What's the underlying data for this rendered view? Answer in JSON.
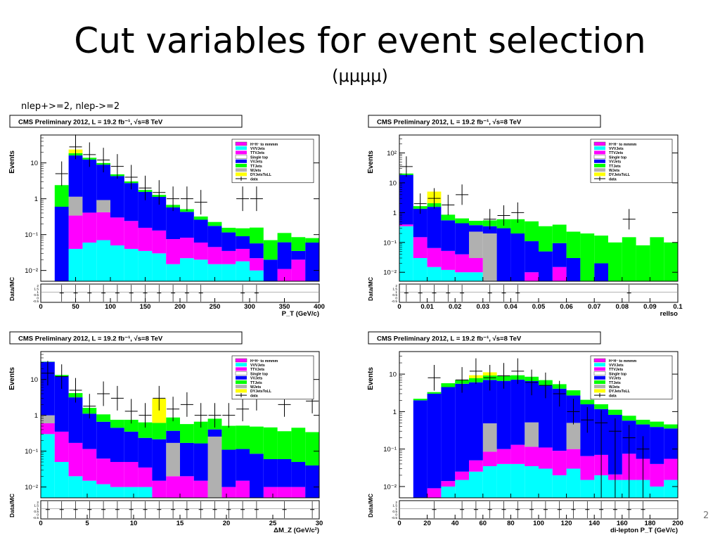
{
  "slide": {
    "title": "Cut variables for event selection",
    "subtitle": "(μμμμ)",
    "selection_note": "nlep+>=2, nlep->=2",
    "page_number": "2"
  },
  "colors": {
    "signal": "#ff00ff",
    "vvv": "#00ffff",
    "ttv": "#ff00ff",
    "single_top": "#ffffff",
    "vv": "#0000ff",
    "tt": "#00ff00",
    "w": "#b0b0b0",
    "dy": "#ffff00",
    "data": "#000000",
    "frame": "#000000"
  },
  "legend_entries": [
    "H⁺H⁻ to mmmm",
    "VVVJets",
    "TTVJets",
    "Single top",
    "VVJets",
    "TTJets",
    "WJets",
    "DYJetsToLL",
    "data"
  ],
  "chart_data": [
    {
      "type": "bar",
      "header": "CMS Preliminary 2012, L = 19.2 fb⁻¹, √s=8 TeV",
      "ylabel": "Events",
      "xlabel": "P_T (GeV/c)",
      "ratio_label": "Data/MC",
      "log_y": true,
      "ylim": [
        0.005,
        60
      ],
      "xlim": [
        0,
        400
      ],
      "x_ticks": [
        "0",
        "50",
        "100",
        "150",
        "200",
        "250",
        "300",
        "350",
        "400"
      ],
      "y_ticks": [
        {
          "v": 10,
          "label": "10"
        },
        {
          "v": 1,
          "label": "1"
        },
        {
          "v": 0.1,
          "label": "10⁻¹"
        },
        {
          "v": 0.01,
          "label": "10⁻²"
        }
      ],
      "ratio_ticks": [
        "2",
        "1.5",
        "1",
        "0.5",
        "0",
        "-0.5"
      ],
      "bin_edges": [
        20,
        40,
        60,
        80,
        100,
        120,
        140,
        160,
        180,
        200,
        220,
        240,
        260,
        280,
        300,
        320,
        340,
        360,
        380,
        400
      ],
      "stack": [
        {
          "name": "VVVJets",
          "color": "#00ffff",
          "values": [
            0,
            0.04,
            0.06,
            0.07,
            0.05,
            0.04,
            0.035,
            0.03,
            0.015,
            0.022,
            0.02,
            0.015,
            0.015,
            0.018,
            0.01,
            0,
            0,
            0,
            0
          ]
        },
        {
          "name": "TTVJets",
          "color": "#ff00ff",
          "values": [
            0,
            0.3,
            0.35,
            0.35,
            0.25,
            0.2,
            0.12,
            0.1,
            0.06,
            0.06,
            0.04,
            0.03,
            0.02,
            0.022,
            0.012,
            0,
            0.011,
            0.02,
            0
          ]
        },
        {
          "name": "WJets",
          "color": "#b0b0b0",
          "values": [
            0,
            0.8,
            0,
            0.5,
            0,
            0,
            0,
            0,
            0,
            0,
            0,
            0,
            0,
            0,
            0,
            0,
            0,
            0,
            0
          ]
        },
        {
          "name": "VVJets",
          "color": "#0000ff",
          "values": [
            0.6,
            15,
            12,
            8,
            4,
            2.5,
            1.4,
            1,
            0.5,
            0.35,
            0.2,
            0.13,
            0.08,
            0.05,
            0.035,
            0.02,
            0.05,
            0.015,
            0.06
          ]
        },
        {
          "name": "TTJets",
          "color": "#00ff00",
          "values": [
            1.8,
            2.5,
            1.5,
            1,
            0.5,
            0.3,
            0.2,
            0.15,
            0.1,
            0.08,
            0.06,
            0.05,
            0.04,
            0.06,
            0.1,
            0.05,
            0.05,
            0.05,
            0.02
          ]
        },
        {
          "name": "DYJetsToLL",
          "color": "#ffff00",
          "values": [
            0,
            5,
            0,
            0,
            0,
            0,
            0,
            0,
            0,
            0,
            0,
            0,
            0,
            0,
            0,
            0,
            0,
            0,
            0
          ]
        }
      ],
      "data": [
        {
          "x": 30,
          "y": 5
        },
        {
          "x": 50,
          "y": 28
        },
        {
          "x": 70,
          "y": 17
        },
        {
          "x": 90,
          "y": 12
        },
        {
          "x": 110,
          "y": 8
        },
        {
          "x": 130,
          "y": 4
        },
        {
          "x": 150,
          "y": 2
        },
        {
          "x": 170,
          "y": 1.5
        },
        {
          "x": 190,
          "y": 1
        },
        {
          "x": 210,
          "y": 1
        },
        {
          "x": 230,
          "y": 0.8
        },
        {
          "x": 290,
          "y": 1
        },
        {
          "x": 310,
          "y": 1
        }
      ]
    },
    {
      "type": "bar",
      "header": "CMS Preliminary 2012, L = 19.2 fb⁻¹, √s=8 TeV",
      "ylabel": "Events",
      "xlabel": "relIso",
      "ratio_label": "Data/MC",
      "log_y": true,
      "ylim": [
        0.005,
        400
      ],
      "xlim": [
        0,
        0.1
      ],
      "x_ticks": [
        "0",
        "0.01",
        "0.02",
        "0.03",
        "0.04",
        "0.05",
        "0.06",
        "0.07",
        "0.08",
        "0.09",
        "0.1"
      ],
      "y_ticks": [
        {
          "v": 100,
          "label": "10²"
        },
        {
          "v": 10,
          "label": "10"
        },
        {
          "v": 1,
          "label": "1"
        },
        {
          "v": 0.1,
          "label": "10⁻¹"
        },
        {
          "v": 0.01,
          "label": "10⁻²"
        }
      ],
      "ratio_ticks": [
        "2",
        "1.5",
        "1",
        "0.5",
        "0",
        "-0.5"
      ],
      "bin_edges": [
        0,
        0.005,
        0.01,
        0.015,
        0.02,
        0.025,
        0.03,
        0.035,
        0.04,
        0.045,
        0.05,
        0.055,
        0.06,
        0.065,
        0.07,
        0.075,
        0.08,
        0.085,
        0.09,
        0.095,
        0.1
      ],
      "stack": [
        {
          "name": "VVVJets",
          "color": "#00ffff",
          "values": [
            0.35,
            0.03,
            0.015,
            0.012,
            0.01,
            0.01,
            0,
            0,
            0,
            0,
            0,
            0,
            0,
            0,
            0,
            0,
            0,
            0,
            0,
            0
          ]
        },
        {
          "name": "TTVJets",
          "color": "#ff00ff",
          "values": [
            0.05,
            0.12,
            0.05,
            0.04,
            0.03,
            0.02,
            0,
            0,
            0,
            0.01,
            0,
            0.015,
            0,
            0,
            0,
            0,
            0,
            0,
            0,
            0
          ]
        },
        {
          "name": "WJets",
          "color": "#b0b0b0",
          "values": [
            0,
            0,
            0,
            0,
            0,
            0.2,
            0.2,
            0,
            0,
            0,
            0,
            0,
            0,
            0,
            0,
            0,
            0,
            0,
            0,
            0
          ]
        },
        {
          "name": "VVJets",
          "color": "#0000ff",
          "values": [
            18,
            1.2,
            1.5,
            0.5,
            0.4,
            0.15,
            0.15,
            0.3,
            0.2,
            0.1,
            0.05,
            0.08,
            0.03,
            0,
            0.02,
            0,
            0,
            0,
            0,
            0
          ]
        },
        {
          "name": "TTJets",
          "color": "#00ff00",
          "values": [
            2,
            0.3,
            0.5,
            0.3,
            0.2,
            0.15,
            0.2,
            0.3,
            0.4,
            0.4,
            0.3,
            0.3,
            0.2,
            0.2,
            0.15,
            0.1,
            0.15,
            0.08,
            0.15,
            0.1
          ]
        },
        {
          "name": "DYJetsToLL",
          "color": "#ffff00",
          "values": [
            0,
            0,
            3,
            0,
            0,
            0,
            0,
            0,
            0,
            0,
            0,
            0,
            0,
            0,
            0,
            0,
            0,
            0,
            0,
            0
          ]
        }
      ],
      "data": [
        {
          "x": 0.0025,
          "y": 35
        },
        {
          "x": 0.0075,
          "y": 2
        },
        {
          "x": 0.0125,
          "y": 3
        },
        {
          "x": 0.0175,
          "y": 1.8
        },
        {
          "x": 0.0225,
          "y": 4
        },
        {
          "x": 0.0325,
          "y": 0.6
        },
        {
          "x": 0.0375,
          "y": 0.8
        },
        {
          "x": 0.0425,
          "y": 1
        },
        {
          "x": 0.0825,
          "y": 0.6
        }
      ]
    },
    {
      "type": "bar",
      "header": "CMS Preliminary 2012, L = 19.2 fb⁻¹, √s=8 TeV",
      "ylabel": "Events",
      "xlabel": "ΔM_Z (GeV/c²)",
      "ratio_label": "Data/MC",
      "log_y": true,
      "ylim": [
        0.005,
        60
      ],
      "xlim": [
        0,
        30
      ],
      "x_ticks": [
        "0",
        "5",
        "10",
        "15",
        "20",
        "25",
        "30"
      ],
      "y_ticks": [
        {
          "v": 10,
          "label": "10"
        },
        {
          "v": 1,
          "label": "1"
        },
        {
          "v": 0.1,
          "label": "10⁻¹"
        },
        {
          "v": 0.01,
          "label": "10⁻²"
        }
      ],
      "ratio_ticks": [
        "2",
        "1.5",
        "1",
        "0.5",
        "0",
        "-0.5"
      ],
      "bin_edges": [
        0,
        1.5,
        3,
        4.5,
        6,
        7.5,
        9,
        10.5,
        12,
        13.5,
        15,
        16.5,
        18,
        19.5,
        21,
        22.5,
        24,
        25.5,
        27,
        28.5,
        30
      ],
      "stack": [
        {
          "name": "VVVJets",
          "color": "#00ffff",
          "values": [
            0.3,
            0.05,
            0.02,
            0.015,
            0.012,
            0.01,
            0.01,
            0.01,
            0,
            0,
            0,
            0,
            0,
            0,
            0,
            0,
            0,
            0,
            0,
            0
          ]
        },
        {
          "name": "TTVJets",
          "color": "#ff00ff",
          "values": [
            0.3,
            0.3,
            0.15,
            0.1,
            0.05,
            0.04,
            0.04,
            0.025,
            0.015,
            0.02,
            0.02,
            0.015,
            0.005,
            0.01,
            0.015,
            0.005,
            0.01,
            0.01,
            0.01,
            0
          ]
        },
        {
          "name": "WJets",
          "color": "#b0b0b0",
          "values": [
            0.4,
            0,
            0,
            0,
            0,
            0,
            0,
            0,
            0,
            0.15,
            0,
            0,
            0.25,
            0,
            0,
            0,
            0,
            0,
            0,
            0
          ]
        },
        {
          "name": "VVJets",
          "color": "#0000ff",
          "values": [
            30,
            12,
            3,
            1,
            0.6,
            0.4,
            0.3,
            0.2,
            0.2,
            0.2,
            0.15,
            0.15,
            0.15,
            0.1,
            0.1,
            0.08,
            0.05,
            0.05,
            0.04,
            0.04
          ]
        },
        {
          "name": "TTJets",
          "color": "#00ff00",
          "values": [
            0.5,
            1,
            1,
            0.5,
            0.4,
            0.3,
            0.4,
            0.4,
            0.4,
            0.5,
            0.4,
            0.5,
            0.4,
            0.4,
            0.4,
            0.4,
            0.4,
            0.3,
            0.4,
            0.3
          ]
        },
        {
          "name": "DYJetsToLL",
          "color": "#ffff00",
          "values": [
            0,
            0,
            0,
            0,
            0,
            0,
            0,
            0,
            2.3,
            0,
            0,
            0,
            0,
            0,
            0,
            0,
            0,
            0,
            0,
            0
          ]
        }
      ],
      "data": [
        {
          "x": 0.75,
          "y": 15
        },
        {
          "x": 2.25,
          "y": 12
        },
        {
          "x": 3.75,
          "y": 5
        },
        {
          "x": 5.25,
          "y": 1.8
        },
        {
          "x": 6.75,
          "y": 4
        },
        {
          "x": 8.25,
          "y": 3
        },
        {
          "x": 9.75,
          "y": 1.3
        },
        {
          "x": 11.25,
          "y": 1
        },
        {
          "x": 12.75,
          "y": 3
        },
        {
          "x": 14.25,
          "y": 1.5
        },
        {
          "x": 15.75,
          "y": 2
        },
        {
          "x": 17.25,
          "y": 1
        },
        {
          "x": 18.75,
          "y": 1
        },
        {
          "x": 20.25,
          "y": 1
        },
        {
          "x": 21.75,
          "y": 1.5
        },
        {
          "x": 23.25,
          "y": 3
        },
        {
          "x": 26.25,
          "y": 2
        },
        {
          "x": 29.25,
          "y": 2.5
        }
      ]
    },
    {
      "type": "bar",
      "header": "CMS Preliminary 2012, L = 19.2 fb⁻¹, √s=8 TeV",
      "ylabel": "Events",
      "xlabel": "di-lepton P_T (GeV/c)",
      "ratio_label": "Data/MC",
      "log_y": true,
      "ylim": [
        0.005,
        40
      ],
      "xlim": [
        0,
        200
      ],
      "x_ticks": [
        "0",
        "20",
        "40",
        "60",
        "80",
        "100",
        "120",
        "140",
        "160",
        "180",
        "200"
      ],
      "y_ticks": [
        {
          "v": 10,
          "label": "10"
        },
        {
          "v": 1,
          "label": "1"
        },
        {
          "v": 0.1,
          "label": "10⁻¹"
        },
        {
          "v": 0.01,
          "label": "10⁻²"
        }
      ],
      "ratio_ticks": [
        "2",
        "1.5",
        "1",
        "0.5",
        "0",
        "-0.5"
      ],
      "bin_edges": [
        10,
        20,
        30,
        40,
        50,
        60,
        70,
        80,
        90,
        100,
        110,
        120,
        130,
        140,
        150,
        160,
        170,
        180,
        190,
        200
      ],
      "stack": [
        {
          "name": "VVVJets",
          "color": "#00ffff",
          "values": [
            0,
            0.005,
            0.01,
            0.015,
            0.025,
            0.035,
            0.04,
            0.04,
            0.035,
            0.03,
            0.02,
            0.03,
            0.015,
            0.02,
            0.015,
            0.015,
            0.015,
            0.01,
            0.015
          ]
        },
        {
          "name": "TTVJets",
          "color": "#ff00ff",
          "values": [
            0,
            0.004,
            0.004,
            0.01,
            0.025,
            0.05,
            0.06,
            0.09,
            0.08,
            0.08,
            0.07,
            0.07,
            0.05,
            0.05,
            0.006,
            0.06,
            0.04,
            0.03,
            0.04
          ]
        },
        {
          "name": "WJets",
          "color": "#b0b0b0",
          "values": [
            0,
            0,
            0,
            0,
            0,
            0.4,
            0,
            0,
            0.4,
            0,
            0,
            0.4,
            0,
            0,
            0,
            0,
            0,
            0,
            0
          ]
        },
        {
          "name": "VVJets",
          "color": "#0000ff",
          "values": [
            2,
            3,
            4.5,
            5.5,
            6,
            6.5,
            6.5,
            7,
            6,
            5,
            4,
            2.2,
            1.5,
            1.1,
            0.8,
            0.5,
            0.4,
            0.35,
            0.3
          ]
        },
        {
          "name": "TTJets",
          "color": "#00ff00",
          "values": [
            0.2,
            0.3,
            1.2,
            1.5,
            1.8,
            2.2,
            2.5,
            2.2,
            2,
            1.8,
            1.3,
            1,
            0.5,
            0.4,
            0.3,
            0.2,
            0.15,
            0.15,
            0.1
          ]
        },
        {
          "name": "DYJetsToLL",
          "color": "#ffff00",
          "values": [
            0,
            0,
            0,
            0,
            1.5,
            2,
            0,
            0,
            0,
            0,
            0,
            0,
            0,
            0,
            0,
            0,
            0,
            0,
            0
          ]
        }
      ],
      "data": [
        {
          "x": 25,
          "y": 8
        },
        {
          "x": 45,
          "y": 7
        },
        {
          "x": 55,
          "y": 12
        },
        {
          "x": 65,
          "y": 8
        },
        {
          "x": 75,
          "y": 9
        },
        {
          "x": 85,
          "y": 12
        },
        {
          "x": 95,
          "y": 6
        },
        {
          "x": 105,
          "y": 5
        },
        {
          "x": 115,
          "y": 3
        },
        {
          "x": 125,
          "y": 1
        },
        {
          "x": 135,
          "y": 0.6
        },
        {
          "x": 145,
          "y": 0.5
        },
        {
          "x": 155,
          "y": 0.3
        },
        {
          "x": 165,
          "y": 0.2
        },
        {
          "x": 175,
          "y": 0.1
        }
      ]
    }
  ]
}
